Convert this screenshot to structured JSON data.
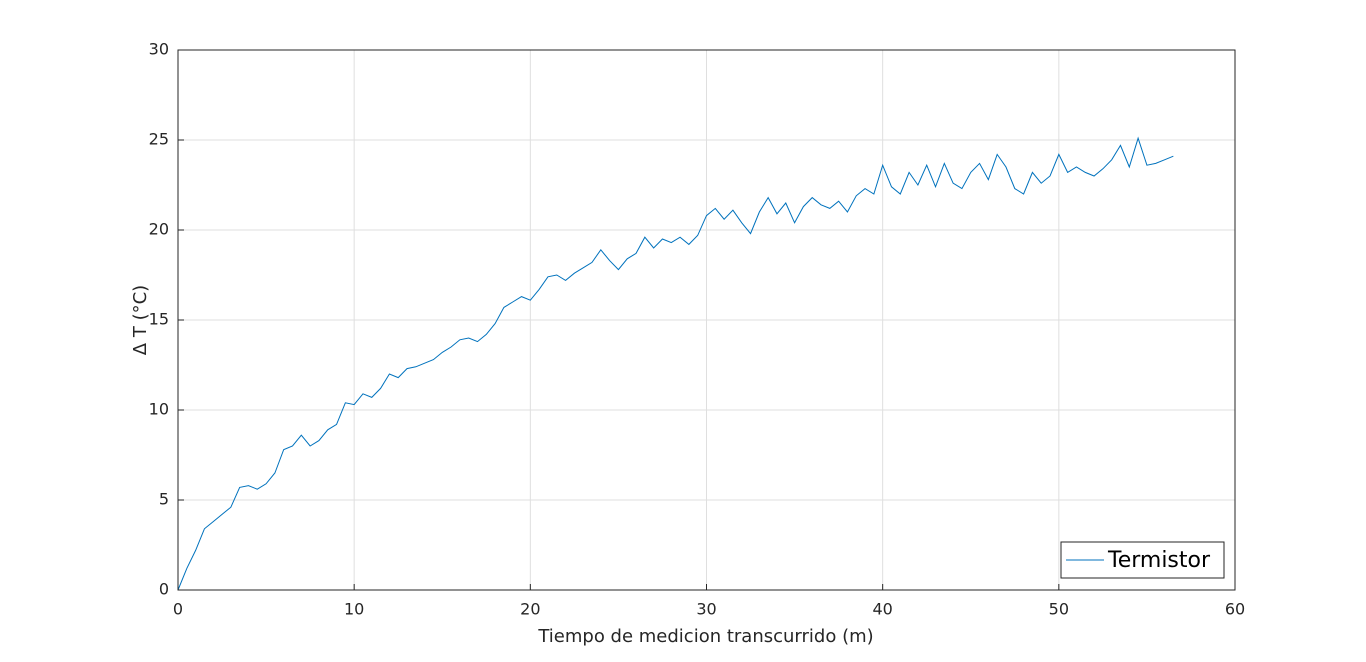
{
  "chart_data": {
    "type": "line",
    "xlabel": "Tiempo de medicion transcurrido (m)",
    "ylabel": "Δ T (°C)",
    "x": [
      0,
      0.5,
      1,
      1.5,
      2,
      2.5,
      3,
      3.5,
      4,
      4.5,
      5,
      5.5,
      6,
      6.5,
      7,
      7.5,
      8,
      8.5,
      9,
      9.5,
      10,
      10.5,
      11,
      11.5,
      12,
      12.5,
      13,
      13.5,
      14,
      14.5,
      15,
      15.5,
      16,
      16.5,
      17,
      17.5,
      18,
      18.5,
      19,
      19.5,
      20,
      20.5,
      21,
      21.5,
      22,
      22.5,
      23,
      23.5,
      24,
      24.5,
      25,
      25.5,
      26,
      26.5,
      27,
      27.5,
      28,
      28.5,
      29,
      29.5,
      30,
      30.5,
      31,
      31.5,
      32,
      32.5,
      33,
      33.5,
      34,
      34.5,
      35,
      35.5,
      36,
      36.5,
      37,
      37.5,
      38,
      38.5,
      39,
      39.5,
      40,
      40.5,
      41,
      41.5,
      42,
      42.5,
      43,
      43.5,
      44,
      44.5,
      45,
      45.5,
      46,
      46.5,
      47,
      47.5,
      48,
      48.5,
      49,
      49.5,
      50,
      50.5,
      51,
      51.5,
      52,
      52.5,
      53,
      53.5,
      54,
      54.5,
      55,
      55.5,
      56,
      56.5
    ],
    "series": [
      {
        "name": "Termistor",
        "color": "#0072bd",
        "values": [
          0,
          1.2,
          2.2,
          3.4,
          3.8,
          4.2,
          4.6,
          5.7,
          5.8,
          5.6,
          5.9,
          6.5,
          7.8,
          8.0,
          8.6,
          8.0,
          8.3,
          8.9,
          9.2,
          10.4,
          10.3,
          10.9,
          10.7,
          11.2,
          12.0,
          11.8,
          12.3,
          12.4,
          12.6,
          12.8,
          13.2,
          13.5,
          13.9,
          14.0,
          13.8,
          14.2,
          14.8,
          15.7,
          16.0,
          16.3,
          16.1,
          16.7,
          17.4,
          17.5,
          17.2,
          17.6,
          17.9,
          18.2,
          18.9,
          18.3,
          17.8,
          18.4,
          18.7,
          19.6,
          19.0,
          19.5,
          19.3,
          19.6,
          19.2,
          19.7,
          20.8,
          21.2,
          20.6,
          21.1,
          20.4,
          19.8,
          21.0,
          21.8,
          20.9,
          21.5,
          20.4,
          21.3,
          21.8,
          21.4,
          21.2,
          21.6,
          21.0,
          21.9,
          22.3,
          22.0,
          23.6,
          22.4,
          22.0,
          23.2,
          22.5,
          23.6,
          22.4,
          23.7,
          22.6,
          22.3,
          23.2,
          23.7,
          22.8,
          24.2,
          23.5,
          22.3,
          22.0,
          23.2,
          22.6,
          23.0,
          24.2,
          23.2,
          23.5,
          23.2,
          23.0,
          23.4,
          23.9,
          24.7,
          23.5,
          25.1,
          23.6,
          23.7,
          23.9,
          24.1
        ]
      }
    ],
    "xlim": [
      0,
      60
    ],
    "xticks": [
      0,
      10,
      20,
      30,
      40,
      50,
      60
    ],
    "ylim": [
      0,
      30
    ],
    "yticks": [
      0,
      5,
      10,
      15,
      20,
      25,
      30
    ],
    "grid": true,
    "legend": "lower right"
  }
}
